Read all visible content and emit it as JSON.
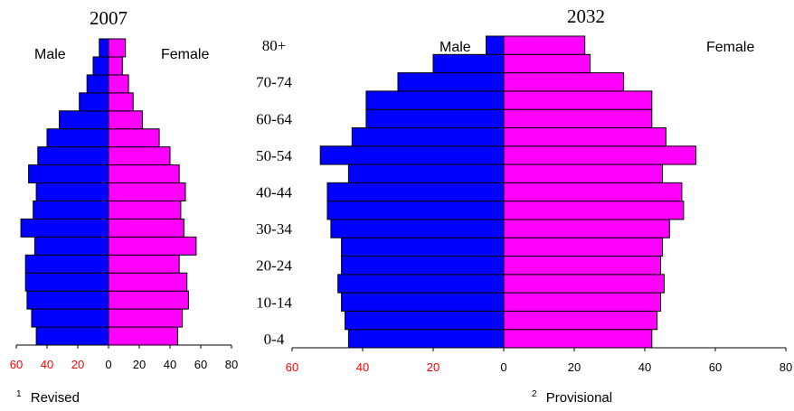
{
  "colors": {
    "male": "#0000ff",
    "female": "#ff00ff",
    "neg_tick": "#ff0000",
    "axis": "#000000"
  },
  "age_axis_labels": [
    "80+",
    "70-74",
    "60-64",
    "50-54",
    "40-44",
    "30-34",
    "20-24",
    "10-14",
    "0-4"
  ],
  "notes": {
    "left": "Revised",
    "left_sup": "1",
    "right": "Provisional",
    "right_sup": "2"
  },
  "chart_data": [
    {
      "type": "bar",
      "orientation": "horizontal-population-pyramid",
      "title": "2007",
      "male_label": "Male",
      "female_label": "Female",
      "xlim": [
        -60,
        80
      ],
      "xticks": [
        -60,
        -40,
        -20,
        0,
        20,
        40,
        60,
        80
      ],
      "xtick_labels": [
        "60",
        "40",
        "20",
        "0",
        "20",
        "40",
        "60",
        "80"
      ],
      "groups": 17,
      "series": [
        {
          "name": "Male",
          "values": [
            47,
            50,
            53,
            54,
            54,
            48,
            57,
            49,
            47,
            52,
            46,
            40,
            32,
            19,
            14,
            10,
            6
          ]
        },
        {
          "name": "Female",
          "values": [
            45,
            48,
            52,
            51,
            46,
            57,
            49,
            47,
            50,
            46,
            40,
            33,
            22,
            16,
            13,
            9,
            11
          ]
        }
      ]
    },
    {
      "type": "bar",
      "orientation": "horizontal-population-pyramid",
      "title": "2032",
      "male_label": "Male",
      "female_label": "Female",
      "xlim": [
        -60,
        80
      ],
      "xticks": [
        -60,
        -40,
        -20,
        0,
        20,
        40,
        60,
        80
      ],
      "xtick_labels": [
        "60",
        "40",
        "20",
        "0",
        "20",
        "40",
        "60",
        "80"
      ],
      "groups": 17,
      "series": [
        {
          "name": "Male",
          "values": [
            44,
            45,
            46,
            47,
            46,
            46,
            49,
            50,
            50,
            44,
            52,
            43,
            39,
            39,
            30,
            20,
            5
          ]
        },
        {
          "name": "Female",
          "values": [
            42,
            43.5,
            44.5,
            45.5,
            44.5,
            45,
            47,
            51,
            50.5,
            45,
            54.5,
            46,
            42,
            42,
            34,
            24.5,
            23
          ]
        }
      ]
    }
  ]
}
